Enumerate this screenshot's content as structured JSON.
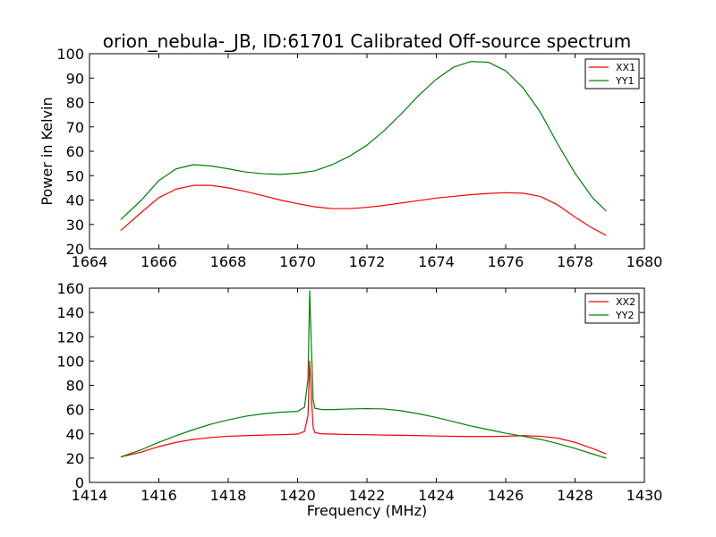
{
  "title": "orion_nebula-_JB, ID:61701 Calibrated Off-source spectrum",
  "chart_data": [
    {
      "type": "line",
      "ylabel": "Power in Kelvin",
      "xlabel": "",
      "xlim": [
        1664,
        1680
      ],
      "ylim": [
        20,
        100
      ],
      "x_ticks": [
        1664,
        1666,
        1668,
        1670,
        1672,
        1674,
        1676,
        1678,
        1680
      ],
      "y_ticks": [
        20,
        30,
        40,
        50,
        60,
        70,
        80,
        90,
        100
      ],
      "legend_position": "top-right",
      "series": [
        {
          "name": "XX1",
          "color": "#ff0000",
          "x": [
            1664.9,
            1665.5,
            1666.0,
            1666.5,
            1667.0,
            1667.5,
            1668.0,
            1668.5,
            1669.0,
            1669.5,
            1670.0,
            1670.5,
            1671.0,
            1671.5,
            1672.0,
            1672.5,
            1673.0,
            1673.5,
            1674.0,
            1674.5,
            1675.0,
            1675.5,
            1676.0,
            1676.5,
            1677.0,
            1677.5,
            1678.0,
            1678.5,
            1678.9
          ],
          "y": [
            27.5,
            35.0,
            41.0,
            44.5,
            46.0,
            46.0,
            45.0,
            43.5,
            41.8,
            40.0,
            38.5,
            37.2,
            36.5,
            36.5,
            37.0,
            37.8,
            38.8,
            39.8,
            40.8,
            41.5,
            42.2,
            42.7,
            43.0,
            42.8,
            41.5,
            38.0,
            33.0,
            28.5,
            25.5
          ]
        },
        {
          "name": "YY1",
          "color": "#008000",
          "x": [
            1664.9,
            1665.5,
            1666.0,
            1666.5,
            1667.0,
            1667.5,
            1668.0,
            1668.5,
            1669.0,
            1669.5,
            1670.0,
            1670.5,
            1671.0,
            1671.5,
            1672.0,
            1672.5,
            1673.0,
            1673.5,
            1674.0,
            1674.5,
            1675.0,
            1675.5,
            1676.0,
            1676.5,
            1677.0,
            1677.5,
            1678.0,
            1678.5,
            1678.9
          ],
          "y": [
            32.0,
            40.0,
            48.0,
            52.8,
            54.5,
            54.0,
            52.8,
            51.5,
            50.8,
            50.5,
            51.0,
            52.0,
            54.5,
            58.0,
            62.5,
            68.5,
            75.5,
            83.0,
            89.5,
            94.5,
            96.8,
            96.5,
            93.0,
            86.0,
            76.0,
            63.0,
            51.0,
            41.0,
            35.5
          ]
        }
      ]
    },
    {
      "type": "line",
      "ylabel": "",
      "xlabel": "Frequency (MHz)",
      "xlim": [
        1414,
        1430
      ],
      "ylim": [
        0,
        160
      ],
      "x_ticks": [
        1414,
        1416,
        1418,
        1420,
        1422,
        1424,
        1426,
        1428,
        1430
      ],
      "y_ticks": [
        0,
        20,
        40,
        60,
        80,
        100,
        120,
        140,
        160
      ],
      "legend_position": "top-right",
      "series": [
        {
          "name": "XX2",
          "color": "#ff0000",
          "x": [
            1414.9,
            1415.5,
            1416.0,
            1416.5,
            1417.0,
            1417.5,
            1418.0,
            1418.5,
            1419.0,
            1419.5,
            1420.0,
            1420.2,
            1420.3,
            1420.35,
            1420.4,
            1420.45,
            1420.5,
            1420.7,
            1421.0,
            1421.5,
            1422.0,
            1422.5,
            1423.0,
            1423.5,
            1424.0,
            1424.5,
            1425.0,
            1425.5,
            1426.0,
            1426.5,
            1427.0,
            1427.5,
            1428.0,
            1428.5,
            1428.9
          ],
          "y": [
            21.0,
            25.0,
            29.5,
            33.0,
            35.5,
            37.0,
            38.0,
            38.5,
            39.0,
            39.3,
            39.8,
            42.0,
            55.0,
            100.0,
            70.0,
            45.0,
            41.0,
            40.0,
            39.8,
            39.5,
            39.3,
            39.0,
            38.8,
            38.5,
            38.2,
            38.0,
            37.8,
            37.8,
            38.0,
            38.5,
            38.0,
            36.5,
            33.0,
            28.0,
            23.5
          ]
        },
        {
          "name": "YY2",
          "color": "#008000",
          "x": [
            1414.9,
            1415.5,
            1416.0,
            1416.5,
            1417.0,
            1417.5,
            1418.0,
            1418.5,
            1419.0,
            1419.5,
            1420.0,
            1420.2,
            1420.3,
            1420.35,
            1420.4,
            1420.45,
            1420.5,
            1420.7,
            1421.0,
            1421.5,
            1422.0,
            1422.5,
            1423.0,
            1423.5,
            1424.0,
            1424.5,
            1425.0,
            1425.5,
            1426.0,
            1426.5,
            1427.0,
            1427.5,
            1428.0,
            1428.5,
            1428.9
          ],
          "y": [
            21.0,
            27.0,
            33.0,
            38.5,
            43.5,
            48.0,
            51.5,
            54.5,
            56.5,
            57.8,
            58.5,
            62.0,
            85.0,
            158.0,
            110.0,
            68.0,
            61.0,
            60.0,
            60.0,
            60.5,
            60.8,
            60.5,
            59.0,
            56.5,
            53.5,
            50.0,
            46.5,
            43.5,
            40.5,
            38.0,
            35.5,
            32.0,
            28.0,
            23.5,
            20.0
          ]
        }
      ]
    }
  ]
}
